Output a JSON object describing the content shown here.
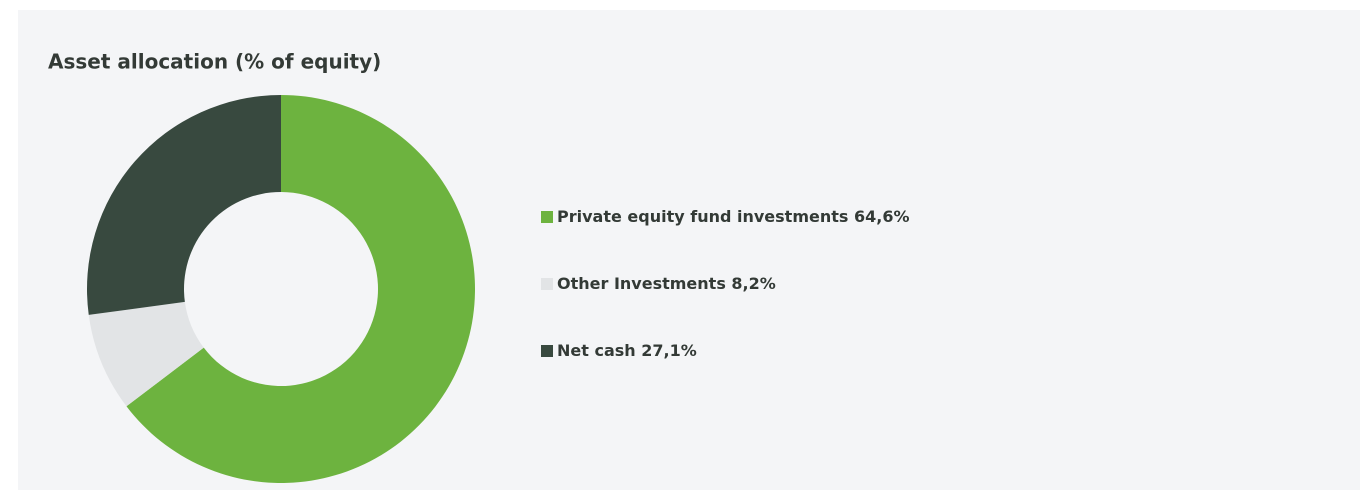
{
  "chart_data": {
    "type": "donut",
    "title": "Asset allocation (% of equity)",
    "categories": [
      "Private equity fund investments",
      "Other Investments",
      "Net cash"
    ],
    "values": [
      64.6,
      8.2,
      27.1
    ],
    "value_labels": [
      "64,6%",
      "8,2%",
      "27,1%"
    ],
    "colors": [
      "#6db33f",
      "#e2e4e6",
      "#38493f"
    ],
    "legend": "right"
  }
}
